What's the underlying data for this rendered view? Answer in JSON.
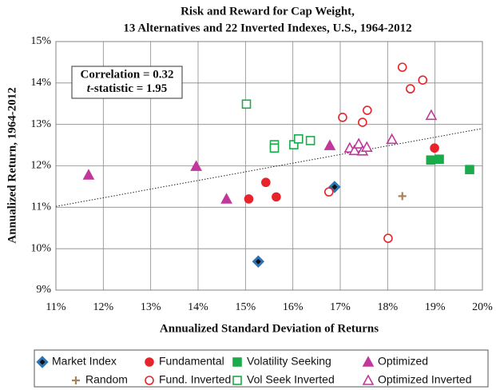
{
  "chart_data": {
    "type": "scatter",
    "title": [
      "Risk and Reward for Cap Weight,",
      "13 Alternatives and 22 Inverted Indexes, U.S., 1964-2012"
    ],
    "x_label": "Annualized Standard Deviation of Returns",
    "y_label": "Annualized Return, 1964-2012",
    "annotations": [
      "Correlation = 0.32",
      "t-statistic = 1.95"
    ],
    "xlim": [
      11,
      20
    ],
    "ylim": [
      9,
      15
    ],
    "xticks": [
      {
        "value": 11,
        "label": "11%"
      },
      {
        "value": 12,
        "label": "12%"
      },
      {
        "value": 13,
        "label": "13%"
      },
      {
        "value": 14,
        "label": "14%"
      },
      {
        "value": 15,
        "label": "15%"
      },
      {
        "value": 16,
        "label": "16%"
      },
      {
        "value": 17,
        "label": "17%"
      },
      {
        "value": 18,
        "label": "18%"
      },
      {
        "value": 19,
        "label": "19%"
      },
      {
        "value": 20,
        "label": "20%"
      }
    ],
    "yticks": [
      {
        "value": 9,
        "label": "9%"
      },
      {
        "value": 10,
        "label": "10%"
      },
      {
        "value": 11,
        "label": "11%"
      },
      {
        "value": 12,
        "label": "12%"
      },
      {
        "value": 13,
        "label": "13%"
      },
      {
        "value": 14,
        "label": "14%"
      },
      {
        "value": 15,
        "label": "15%"
      }
    ],
    "grid": true,
    "trendline": {
      "x": [
        11,
        20
      ],
      "y": [
        11.02,
        12.9
      ]
    },
    "series": [
      {
        "name": "Market Index",
        "color": "#2e75b6",
        "marker": "diamond",
        "filled": true,
        "x": [
          15.27,
          16.88
        ],
        "values": [
          9.69,
          11.49
        ]
      },
      {
        "name": "Fundamental",
        "color": "#e8232a",
        "marker": "circle",
        "filled": true,
        "x": [
          15.07,
          15.43,
          15.65,
          18.99
        ],
        "values": [
          11.2,
          11.6,
          11.25,
          12.43
        ]
      },
      {
        "name": "Volatility Seeking",
        "color": "#1aab4a",
        "marker": "square",
        "filled": true,
        "x": [
          18.91,
          19.09,
          19.73
        ],
        "values": [
          12.14,
          12.16,
          11.91
        ]
      },
      {
        "name": "Optimized",
        "color": "#c1379b",
        "marker": "triangle",
        "filled": true,
        "x": [
          11.69,
          13.96,
          14.6,
          16.78
        ],
        "values": [
          11.78,
          11.99,
          11.2,
          12.49
        ]
      },
      {
        "name": "Random",
        "color": "#a8825a",
        "marker": "plus",
        "filled": true,
        "x": [
          18.31
        ],
        "values": [
          11.27
        ]
      },
      {
        "name": "Fund. Inverted",
        "color": "#e8232a",
        "marker": "circle",
        "filled": false,
        "x": [
          17.05,
          16.76,
          17.47,
          17.57,
          18.01,
          18.31,
          18.48,
          18.74
        ],
        "values": [
          13.17,
          11.37,
          13.05,
          13.34,
          10.25,
          14.38,
          13.86,
          14.07
        ]
      },
      {
        "name": "Vol Seek Inverted",
        "color": "#1aab4a",
        "marker": "square",
        "filled": false,
        "x": [
          15.02,
          15.61,
          15.61,
          16.02,
          16.12,
          16.37
        ],
        "values": [
          13.49,
          12.51,
          12.43,
          12.51,
          12.65,
          12.61
        ]
      },
      {
        "name": "Optimized Inverted",
        "color": "#c1379b",
        "marker": "triangle",
        "filled": false,
        "x": [
          18.92,
          18.09,
          17.2,
          17.3,
          17.39,
          17.47,
          17.56
        ],
        "values": [
          13.22,
          12.64,
          12.43,
          12.37,
          12.53,
          12.36,
          12.45
        ]
      }
    ]
  }
}
